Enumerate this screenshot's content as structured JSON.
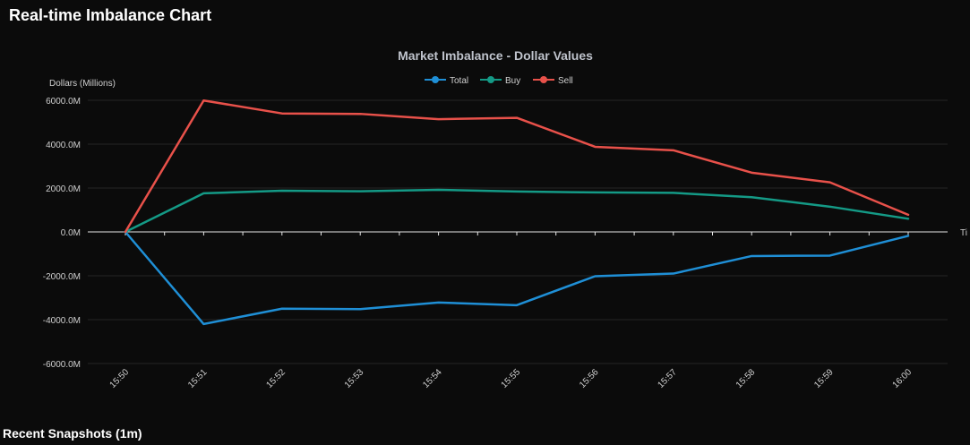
{
  "page": {
    "title": "Real-time Imbalance Chart",
    "recent_title": "Recent Snapshots (1m)"
  },
  "colors": {
    "total": "#1f8fd6",
    "buy": "#149a86",
    "sell": "#e8514a",
    "grid": "#262626",
    "tick_text": "#cfcfcf",
    "title_text": "#bfc3cc"
  },
  "chart_data": {
    "type": "line",
    "title": "Market Imbalance - Dollar Values",
    "ylabel": "Dollars (Millions)",
    "xlabel": "Time",
    "x_axis_label_visible": "Ti",
    "categories": [
      "15:50",
      "15:51",
      "15:52",
      "15:53",
      "15:54",
      "15:55",
      "15:56",
      "15:57",
      "15:58",
      "15:59",
      "16:00"
    ],
    "ylim": [
      -6000,
      6000
    ],
    "yticks": [
      6000,
      4000,
      2000,
      0,
      -2000,
      -4000,
      -6000
    ],
    "ytick_labels": [
      "6000.0M",
      "4000.0M",
      "2000.0M",
      "0.0M",
      "-2000.0M",
      "-4000.0M",
      "-6000.0M"
    ],
    "legend_position": "top-center",
    "grid": true,
    "series": [
      {
        "key": "total",
        "name": "Total",
        "values": [
          0,
          -4200,
          -3500,
          -3520,
          -3220,
          -3340,
          -2020,
          -1900,
          -1100,
          -1080,
          -180
        ]
      },
      {
        "key": "buy",
        "name": "Buy",
        "values": [
          0,
          1760,
          1880,
          1850,
          1920,
          1840,
          1800,
          1780,
          1580,
          1150,
          600
        ]
      },
      {
        "key": "sell",
        "name": "Sell",
        "values": [
          0,
          5990,
          5400,
          5380,
          5140,
          5200,
          3880,
          3720,
          2700,
          2260,
          780
        ]
      }
    ]
  }
}
